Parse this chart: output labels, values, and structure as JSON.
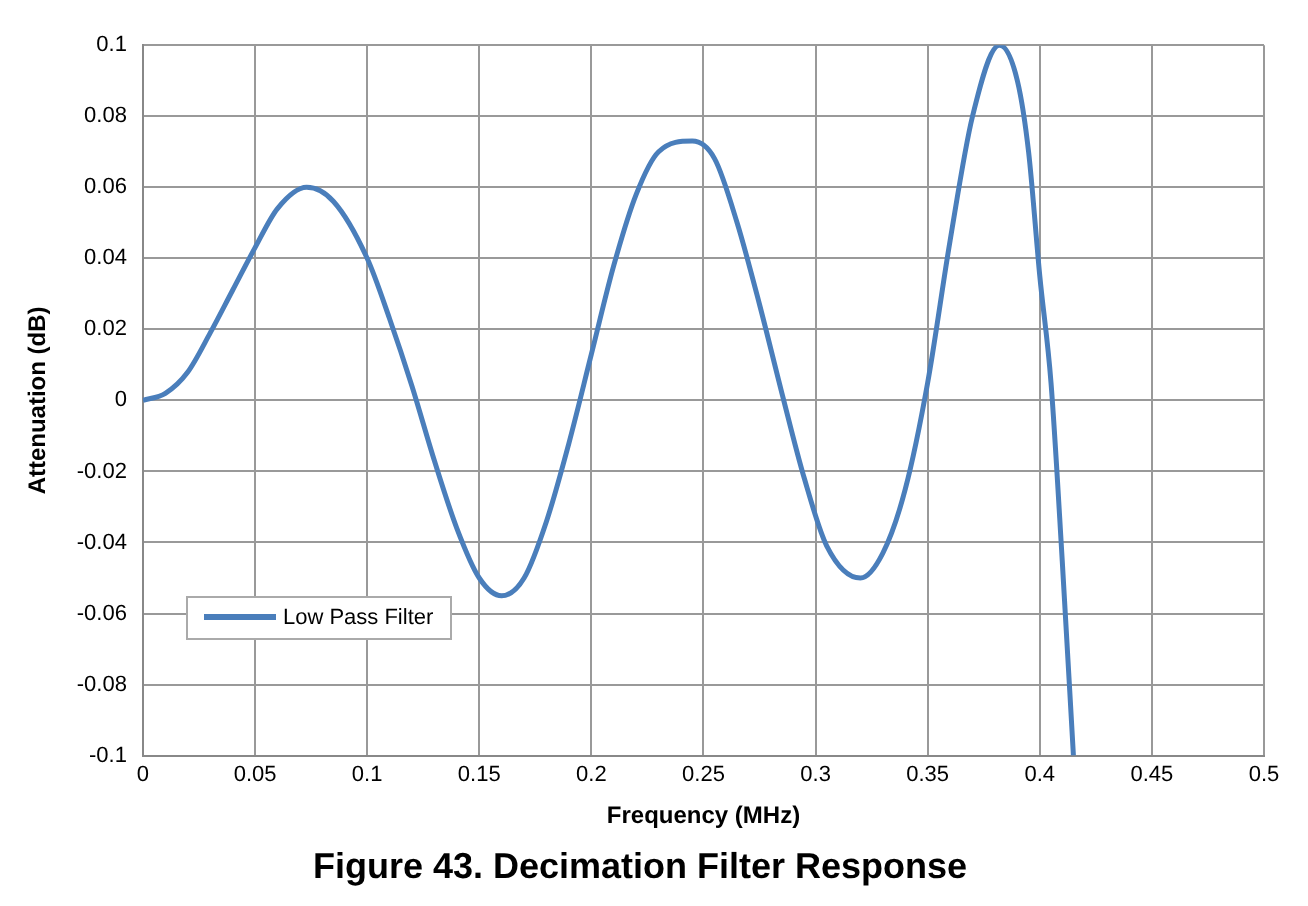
{
  "chart_data": {
    "type": "line",
    "title": "Figure 43. Decimation Filter Response",
    "xlabel": "Frequency (MHz)",
    "ylabel": "Attenuation (dB)",
    "x": [
      0,
      0.01,
      0.02,
      0.03,
      0.04,
      0.05,
      0.06,
      0.073,
      0.085,
      0.1,
      0.11,
      0.12,
      0.13,
      0.14,
      0.15,
      0.16,
      0.17,
      0.18,
      0.19,
      0.2,
      0.21,
      0.22,
      0.23,
      0.245,
      0.255,
      0.265,
      0.275,
      0.285,
      0.295,
      0.305,
      0.32,
      0.33,
      0.34,
      0.35,
      0.36,
      0.37,
      0.382,
      0.39,
      0.395,
      0.4,
      0.405,
      0.41,
      0.415
    ],
    "series": [
      {
        "name": "Low Pass Filter",
        "color": "#4a7ebb",
        "values": [
          0,
          0.002,
          0.008,
          0.019,
          0.031,
          0.043,
          0.054,
          0.06,
          0.056,
          0.04,
          0.023,
          0.004,
          -0.017,
          -0.036,
          -0.05,
          -0.055,
          -0.05,
          -0.034,
          -0.012,
          0.013,
          0.038,
          0.058,
          0.07,
          0.073,
          0.068,
          0.05,
          0.027,
          0.002,
          -0.022,
          -0.041,
          -0.05,
          -0.043,
          -0.025,
          0.005,
          0.045,
          0.08,
          0.1,
          0.09,
          0.07,
          0.035,
          0.005,
          -0.045,
          -0.1
        ]
      }
    ],
    "xlim": [
      0,
      0.5
    ],
    "xticks": [
      0,
      0.05,
      0.1,
      0.15,
      0.2,
      0.25,
      0.3,
      0.35,
      0.4,
      0.45,
      0.5
    ],
    "ylim": [
      -0.1,
      0.1
    ],
    "yticks": [
      -0.1,
      -0.08,
      -0.06,
      -0.04,
      -0.02,
      0,
      0.02,
      0.04,
      0.06,
      0.08,
      0.1
    ],
    "grid": true,
    "legend": "bottom left",
    "marker": "none",
    "line_style": "solid"
  }
}
